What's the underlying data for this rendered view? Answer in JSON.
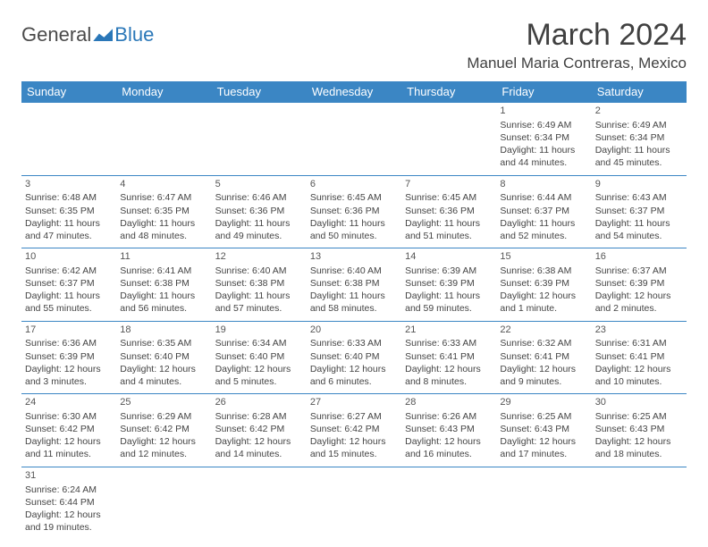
{
  "logo": {
    "word1": "General",
    "word2": "Blue"
  },
  "title": "March 2024",
  "location": "Manuel Maria Contreras, Mexico",
  "dayHeaders": [
    "Sunday",
    "Monday",
    "Tuesday",
    "Wednesday",
    "Thursday",
    "Friday",
    "Saturday"
  ],
  "labels": {
    "sunrise": "Sunrise:",
    "sunset": "Sunset:",
    "daylight": "Daylight:"
  },
  "colors": {
    "headerBg": "#3b86c4",
    "headerText": "#ffffff",
    "accent": "#2a77b8",
    "text": "#404040"
  },
  "weeks": [
    [
      null,
      null,
      null,
      null,
      null,
      {
        "num": "1",
        "sunrise": "6:49 AM",
        "sunset": "6:34 PM",
        "daylight": "11 hours and 44 minutes."
      },
      {
        "num": "2",
        "sunrise": "6:49 AM",
        "sunset": "6:34 PM",
        "daylight": "11 hours and 45 minutes."
      }
    ],
    [
      {
        "num": "3",
        "sunrise": "6:48 AM",
        "sunset": "6:35 PM",
        "daylight": "11 hours and 47 minutes."
      },
      {
        "num": "4",
        "sunrise": "6:47 AM",
        "sunset": "6:35 PM",
        "daylight": "11 hours and 48 minutes."
      },
      {
        "num": "5",
        "sunrise": "6:46 AM",
        "sunset": "6:36 PM",
        "daylight": "11 hours and 49 minutes."
      },
      {
        "num": "6",
        "sunrise": "6:45 AM",
        "sunset": "6:36 PM",
        "daylight": "11 hours and 50 minutes."
      },
      {
        "num": "7",
        "sunrise": "6:45 AM",
        "sunset": "6:36 PM",
        "daylight": "11 hours and 51 minutes."
      },
      {
        "num": "8",
        "sunrise": "6:44 AM",
        "sunset": "6:37 PM",
        "daylight": "11 hours and 52 minutes."
      },
      {
        "num": "9",
        "sunrise": "6:43 AM",
        "sunset": "6:37 PM",
        "daylight": "11 hours and 54 minutes."
      }
    ],
    [
      {
        "num": "10",
        "sunrise": "6:42 AM",
        "sunset": "6:37 PM",
        "daylight": "11 hours and 55 minutes."
      },
      {
        "num": "11",
        "sunrise": "6:41 AM",
        "sunset": "6:38 PM",
        "daylight": "11 hours and 56 minutes."
      },
      {
        "num": "12",
        "sunrise": "6:40 AM",
        "sunset": "6:38 PM",
        "daylight": "11 hours and 57 minutes."
      },
      {
        "num": "13",
        "sunrise": "6:40 AM",
        "sunset": "6:38 PM",
        "daylight": "11 hours and 58 minutes."
      },
      {
        "num": "14",
        "sunrise": "6:39 AM",
        "sunset": "6:39 PM",
        "daylight": "11 hours and 59 minutes."
      },
      {
        "num": "15",
        "sunrise": "6:38 AM",
        "sunset": "6:39 PM",
        "daylight": "12 hours and 1 minute."
      },
      {
        "num": "16",
        "sunrise": "6:37 AM",
        "sunset": "6:39 PM",
        "daylight": "12 hours and 2 minutes."
      }
    ],
    [
      {
        "num": "17",
        "sunrise": "6:36 AM",
        "sunset": "6:39 PM",
        "daylight": "12 hours and 3 minutes."
      },
      {
        "num": "18",
        "sunrise": "6:35 AM",
        "sunset": "6:40 PM",
        "daylight": "12 hours and 4 minutes."
      },
      {
        "num": "19",
        "sunrise": "6:34 AM",
        "sunset": "6:40 PM",
        "daylight": "12 hours and 5 minutes."
      },
      {
        "num": "20",
        "sunrise": "6:33 AM",
        "sunset": "6:40 PM",
        "daylight": "12 hours and 6 minutes."
      },
      {
        "num": "21",
        "sunrise": "6:33 AM",
        "sunset": "6:41 PM",
        "daylight": "12 hours and 8 minutes."
      },
      {
        "num": "22",
        "sunrise": "6:32 AM",
        "sunset": "6:41 PM",
        "daylight": "12 hours and 9 minutes."
      },
      {
        "num": "23",
        "sunrise": "6:31 AM",
        "sunset": "6:41 PM",
        "daylight": "12 hours and 10 minutes."
      }
    ],
    [
      {
        "num": "24",
        "sunrise": "6:30 AM",
        "sunset": "6:42 PM",
        "daylight": "12 hours and 11 minutes."
      },
      {
        "num": "25",
        "sunrise": "6:29 AM",
        "sunset": "6:42 PM",
        "daylight": "12 hours and 12 minutes."
      },
      {
        "num": "26",
        "sunrise": "6:28 AM",
        "sunset": "6:42 PM",
        "daylight": "12 hours and 14 minutes."
      },
      {
        "num": "27",
        "sunrise": "6:27 AM",
        "sunset": "6:42 PM",
        "daylight": "12 hours and 15 minutes."
      },
      {
        "num": "28",
        "sunrise": "6:26 AM",
        "sunset": "6:43 PM",
        "daylight": "12 hours and 16 minutes."
      },
      {
        "num": "29",
        "sunrise": "6:25 AM",
        "sunset": "6:43 PM",
        "daylight": "12 hours and 17 minutes."
      },
      {
        "num": "30",
        "sunrise": "6:25 AM",
        "sunset": "6:43 PM",
        "daylight": "12 hours and 18 minutes."
      }
    ],
    [
      {
        "num": "31",
        "sunrise": "6:24 AM",
        "sunset": "6:44 PM",
        "daylight": "12 hours and 19 minutes."
      },
      null,
      null,
      null,
      null,
      null,
      null
    ]
  ]
}
